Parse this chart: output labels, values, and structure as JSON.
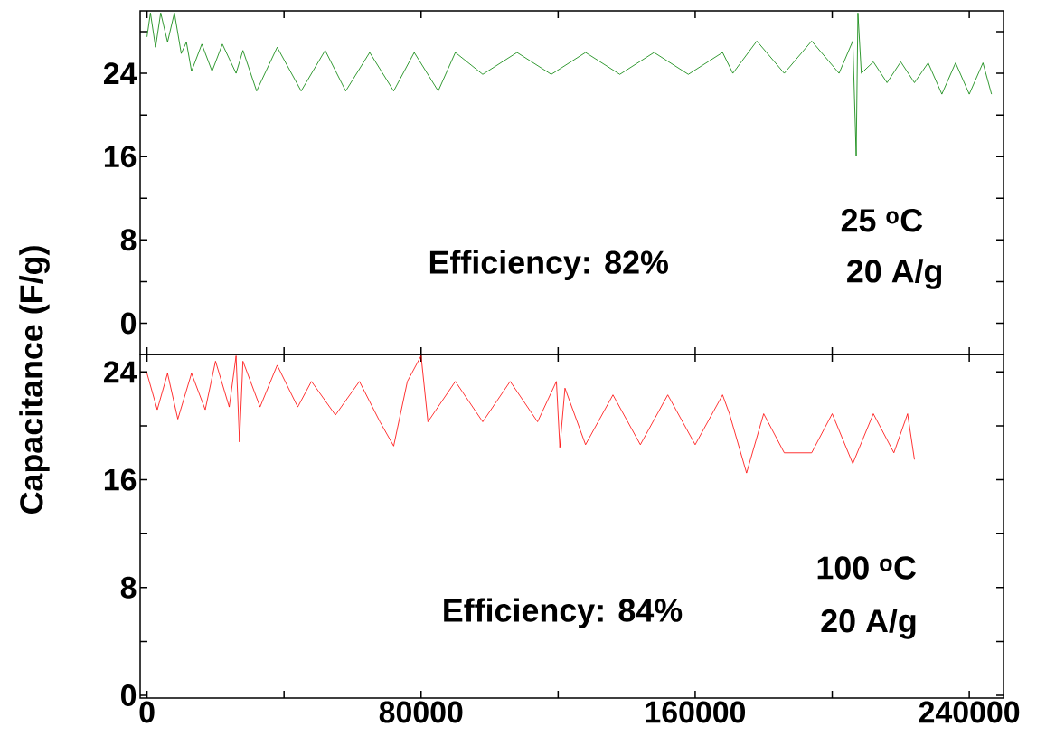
{
  "chart_data": [
    {
      "type": "line",
      "ylabel": "Capacitance (F/g)",
      "xlim": [
        -2000,
        250000
      ],
      "ylim": [
        -3,
        30
      ],
      "xticks": [
        {
          "value": 0,
          "label": null
        },
        {
          "value": 40000,
          "label": null
        },
        {
          "value": 80000,
          "label": null
        },
        {
          "value": 120000,
          "label": null
        },
        {
          "value": 160000,
          "label": null
        },
        {
          "value": 200000,
          "label": null
        },
        {
          "value": 240000,
          "label": null
        }
      ],
      "yticks": [
        0,
        {
          "value": 4,
          "label": null
        },
        8,
        {
          "value": 12,
          "label": null
        },
        16,
        {
          "value": 20,
          "label": null
        },
        24,
        {
          "value": 28,
          "label": null
        }
      ],
      "tick_labels": "y",
      "series": [
        {
          "color": "#008000",
          "x": [
            0,
            1000,
            2500,
            4000,
            6000,
            8000,
            10000,
            11500,
            13000,
            16000,
            19000,
            22000,
            26000,
            28000,
            32000,
            38000,
            45000,
            52000,
            58000,
            65000,
            72000,
            78000,
            85000,
            90000,
            98000,
            108000,
            118000,
            128000,
            138000,
            148000,
            158000,
            168000,
            171000,
            178000,
            186000,
            194000,
            202000,
            206000,
            207000,
            207500,
            208500,
            212000,
            216000,
            220000,
            224000,
            228000,
            232000,
            236000,
            240000,
            244000,
            246500
          ],
          "values": [
            27.5,
            29.8,
            26.5,
            29.8,
            27,
            29.8,
            25.9,
            27,
            24.2,
            26.8,
            24.2,
            26.8,
            24.0,
            26.2,
            22.3,
            26.5,
            22.3,
            26.2,
            22.3,
            26.0,
            22.3,
            26.0,
            22.3,
            26.0,
            23.9,
            26.0,
            23.9,
            26.0,
            23.9,
            26.0,
            23.9,
            26.0,
            24.0,
            27.1,
            24.0,
            27.1,
            24.0,
            27.1,
            16.1,
            29.8,
            24.0,
            25.1,
            23.1,
            25.1,
            23.1,
            25.0,
            22.0,
            25.0,
            22.0,
            25.0,
            22.0
          ]
        }
      ],
      "annotations": [
        "Efficiency: 82%",
        "25 $^{o}$C",
        "20 A/g"
      ]
    },
    {
      "type": "line",
      "xlim": [
        -2000,
        250000
      ],
      "ylim": [
        -0.2,
        25.3
      ],
      "xticks": [
        0,
        {
          "value": 40000,
          "label": null
        },
        80000,
        {
          "value": 120000,
          "label": null
        },
        160000,
        {
          "value": 200000,
          "label": null
        },
        240000
      ],
      "yticks": [
        0,
        {
          "value": 4,
          "label": null
        },
        8,
        {
          "value": 12,
          "label": null
        },
        16,
        {
          "value": 20,
          "label": null
        },
        24
      ],
      "series": [
        {
          "color": "#ff0000",
          "x": [
            0,
            3000,
            6000,
            9000,
            13000,
            17000,
            20000,
            24000,
            26000,
            27000,
            28000,
            33000,
            38000,
            44000,
            48000,
            55000,
            62000,
            68000,
            72000,
            76000,
            80000,
            82000,
            90000,
            98000,
            106000,
            114000,
            119500,
            120000,
            120500,
            122000,
            128000,
            136000,
            144000,
            152000,
            160000,
            168000,
            170000,
            175000,
            180000,
            186000,
            191000,
            194000,
            200000,
            206000,
            212000,
            218000,
            222000,
            224000
          ],
          "values": [
            23.9,
            21.2,
            23.9,
            20.5,
            23.9,
            21.2,
            24.8,
            21.4,
            25.2,
            18.8,
            24.8,
            21.4,
            24.5,
            21.4,
            23.3,
            20.8,
            23.3,
            20.3,
            18.5,
            23.3,
            25.2,
            20.3,
            23.3,
            20.3,
            23.3,
            20.3,
            23.3,
            null,
            18.4,
            22.8,
            18.6,
            22.3,
            18.6,
            22.3,
            18.6,
            22.3,
            20.9,
            16.5,
            20.9,
            18.0,
            null,
            18.0,
            20.9,
            17.2,
            20.9,
            18.0,
            20.9,
            17.5
          ]
        }
      ],
      "annotations": [
        "Efficiency: 84%",
        "100 $^{o}$C",
        "20 A/g"
      ]
    }
  ]
}
